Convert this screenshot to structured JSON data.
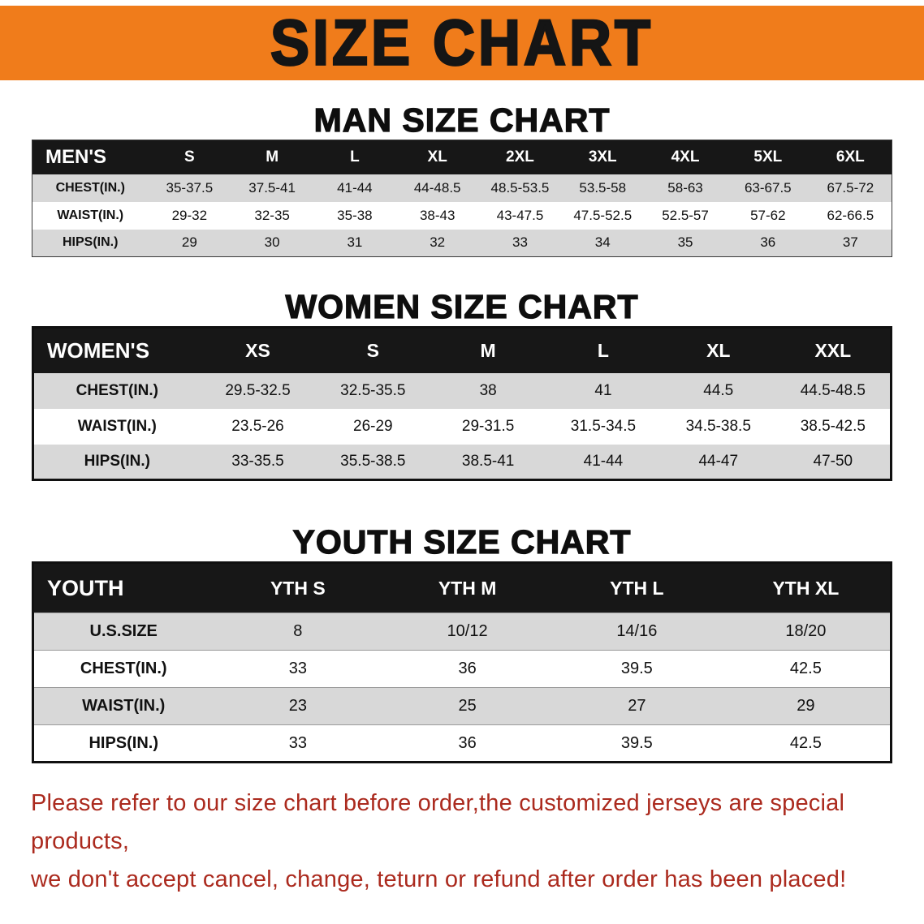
{
  "banner": {
    "title": "SIZE CHART"
  },
  "colors": {
    "banner_bg": "#f07c1b",
    "stripe": "#d8d8d8",
    "disclaimer": "#ab2a1e"
  },
  "sections": {
    "men": {
      "heading": "MAN SIZE CHART",
      "table": {
        "title": "MEN'S",
        "columns": [
          "S",
          "M",
          "L",
          "XL",
          "2XL",
          "3XL",
          "4XL",
          "5XL",
          "6XL"
        ],
        "rows": [
          {
            "label": "CHEST(IN.)",
            "values": [
              "35-37.5",
              "37.5-41",
              "41-44",
              "44-48.5",
              "48.5-53.5",
              "53.5-58",
              "58-63",
              "63-67.5",
              "67.5-72"
            ]
          },
          {
            "label": "WAIST(IN.)",
            "values": [
              "29-32",
              "32-35",
              "35-38",
              "38-43",
              "43-47.5",
              "47.5-52.5",
              "52.5-57",
              "57-62",
              "62-66.5"
            ]
          },
          {
            "label": "HIPS(IN.)",
            "values": [
              "29",
              "30",
              "31",
              "32",
              "33",
              "34",
              "35",
              "36",
              "37"
            ]
          }
        ]
      }
    },
    "women": {
      "heading": "WOMEN SIZE CHART",
      "table": {
        "title": "WOMEN'S",
        "columns": [
          "XS",
          "S",
          "M",
          "L",
          "XL",
          "XXL"
        ],
        "rows": [
          {
            "label": "CHEST(IN.)",
            "values": [
              "29.5-32.5",
              "32.5-35.5",
              "38",
              "41",
              "44.5",
              "44.5-48.5"
            ]
          },
          {
            "label": "WAIST(IN.)",
            "values": [
              "23.5-26",
              "26-29",
              "29-31.5",
              "31.5-34.5",
              "34.5-38.5",
              "38.5-42.5"
            ]
          },
          {
            "label": "HIPS(IN.)",
            "values": [
              "33-35.5",
              "35.5-38.5",
              "38.5-41",
              "41-44",
              "44-47",
              "47-50"
            ]
          }
        ]
      }
    },
    "youth": {
      "heading": "YOUTH SIZE CHART",
      "table": {
        "title": "YOUTH",
        "columns": [
          "YTH S",
          "YTH M",
          "YTH L",
          "YTH XL"
        ],
        "rows": [
          {
            "label": "U.S.SIZE",
            "values": [
              "8",
              "10/12",
              "14/16",
              "18/20"
            ]
          },
          {
            "label": "CHEST(IN.)",
            "values": [
              "33",
              "36",
              "39.5",
              "42.5"
            ]
          },
          {
            "label": "WAIST(IN.)",
            "values": [
              "23",
              "25",
              "27",
              "29"
            ]
          },
          {
            "label": "HIPS(IN.)",
            "values": [
              "33",
              "36",
              "39.5",
              "42.5"
            ]
          }
        ]
      }
    }
  },
  "disclaimer": {
    "line1": "Please refer to our size chart before order,the customized jerseys are special products,",
    "line2": "we don't accept cancel, change, teturn or refund after order has been placed!"
  }
}
